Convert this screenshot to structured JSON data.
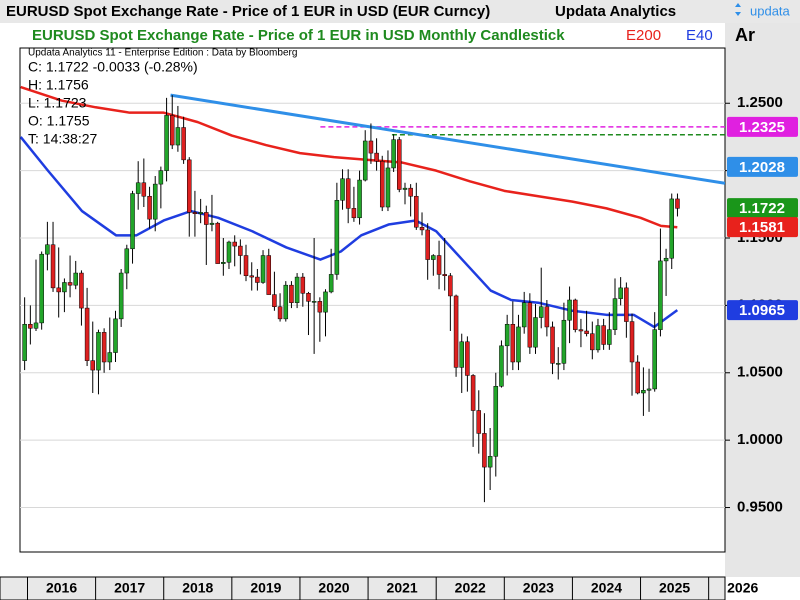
{
  "chart_data": {
    "type": "candlestick",
    "title": "EURUSD Spot Exchange Rate - Price of 1 EUR in USD (EUR Curncy)",
    "publisher": "Updata Analytics",
    "logo": "updata",
    "axis_tab": "Ar",
    "subtitle": "EURUSD Spot Exchange Rate - Price of 1 EUR in USD Monthly Candlestick",
    "info": [
      "Updata Analytics 11 - Enterprise Edition : Data by Bloomberg",
      "C: 1.1722  -0.0033 (-0.28%)",
      "H: 1.1756",
      "L: 1.1723",
      "O: 1.1755",
      "T: 14:38:27"
    ],
    "up_color": "#22a52a",
    "down_color": "#dd2020",
    "xlim": [
      2015.89,
      2026.24
    ],
    "xticks": [
      2016,
      2017,
      2018,
      2019,
      2020,
      2021,
      2022,
      2023,
      2024,
      2025,
      2026
    ],
    "ylim": [
      0.917,
      1.291
    ],
    "yticks": [
      {
        "value": 0.95,
        "label": "0.9500"
      },
      {
        "value": 1.0,
        "label": "1.0000"
      },
      {
        "value": 1.05,
        "label": "1.0500"
      },
      {
        "value": 1.1,
        "label": "1.1000"
      },
      {
        "value": 1.15,
        "label": "1.1500"
      },
      {
        "value": 1.2,
        "label": "1.2000"
      },
      {
        "value": 1.25,
        "label": "1.2500"
      }
    ],
    "grid": true,
    "x": [
      2015.958,
      2016.042,
      2016.125,
      2016.208,
      2016.292,
      2016.375,
      2016.458,
      2016.542,
      2016.625,
      2016.708,
      2016.792,
      2016.875,
      2016.958,
      2017.042,
      2017.125,
      2017.208,
      2017.292,
      2017.375,
      2017.458,
      2017.542,
      2017.625,
      2017.708,
      2017.792,
      2017.875,
      2017.958,
      2018.042,
      2018.125,
      2018.208,
      2018.292,
      2018.375,
      2018.458,
      2018.542,
      2018.625,
      2018.708,
      2018.792,
      2018.875,
      2018.958,
      2019.042,
      2019.125,
      2019.208,
      2019.292,
      2019.375,
      2019.458,
      2019.542,
      2019.625,
      2019.708,
      2019.792,
      2019.875,
      2019.958,
      2020.042,
      2020.125,
      2020.208,
      2020.292,
      2020.375,
      2020.458,
      2020.542,
      2020.625,
      2020.708,
      2020.792,
      2020.875,
      2020.958,
      2021.042,
      2021.125,
      2021.208,
      2021.292,
      2021.375,
      2021.458,
      2021.542,
      2021.625,
      2021.708,
      2021.792,
      2021.875,
      2021.958,
      2022.042,
      2022.125,
      2022.208,
      2022.292,
      2022.375,
      2022.458,
      2022.542,
      2022.625,
      2022.708,
      2022.792,
      2022.875,
      2022.958,
      2023.042,
      2023.125,
      2023.208,
      2023.292,
      2023.375,
      2023.458,
      2023.542,
      2023.625,
      2023.708,
      2023.792,
      2023.875,
      2023.958,
      2024.042,
      2024.125,
      2024.208,
      2024.292,
      2024.375,
      2024.458,
      2024.542,
      2024.625,
      2024.708,
      2024.792,
      2024.875,
      2024.958,
      2025.042,
      2025.125,
      2025.208,
      2025.292,
      2025.375,
      2025.458,
      2025.542
    ],
    "open": [
      1.059,
      1.086,
      1.083,
      1.087,
      1.138,
      1.145,
      1.113,
      1.11,
      1.117,
      1.115,
      1.124,
      1.098,
      1.059,
      1.052,
      1.08,
      1.058,
      1.065,
      1.09,
      1.124,
      1.142,
      1.183,
      1.191,
      1.181,
      1.164,
      1.19,
      1.2,
      1.241,
      1.219,
      1.232,
      1.208,
      1.169,
      1.168,
      1.169,
      1.16,
      1.161,
      1.131,
      1.132,
      1.147,
      1.144,
      1.137,
      1.122,
      1.121,
      1.117,
      1.137,
      1.108,
      1.099,
      1.09,
      1.115,
      1.102,
      1.121,
      1.109,
      1.103,
      1.103,
      1.095,
      1.11,
      1.123,
      1.178,
      1.194,
      1.172,
      1.165,
      1.193,
      1.222,
      1.213,
      1.207,
      1.173,
      1.202,
      1.223,
      1.186,
      1.187,
      1.181,
      1.158,
      1.156,
      1.134,
      1.137,
      1.123,
      1.122,
      1.107,
      1.054,
      1.073,
      1.048,
      1.022,
      1.005,
      0.98,
      0.988,
      1.04,
      1.07,
      1.086,
      1.058,
      1.084,
      1.102,
      1.069,
      1.091,
      1.099,
      1.084,
      1.057,
      1.057,
      1.089,
      1.104,
      1.082,
      1.081,
      1.079,
      1.067,
      1.085,
      1.071,
      1.082,
      1.105,
      1.113,
      1.088,
      1.058,
      1.035,
      1.037,
      1.038,
      1.082,
      1.133,
      1.135,
      1.179
    ],
    "high": [
      1.106,
      1.1,
      1.134,
      1.14,
      1.162,
      1.162,
      1.143,
      1.12,
      1.137,
      1.133,
      1.126,
      1.113,
      1.088,
      1.082,
      1.083,
      1.091,
      1.096,
      1.127,
      1.145,
      1.185,
      1.207,
      1.209,
      1.188,
      1.196,
      1.203,
      1.254,
      1.256,
      1.248,
      1.24,
      1.21,
      1.185,
      1.179,
      1.174,
      1.182,
      1.162,
      1.15,
      1.148,
      1.152,
      1.149,
      1.145,
      1.132,
      1.127,
      1.141,
      1.142,
      1.125,
      1.109,
      1.118,
      1.118,
      1.124,
      1.124,
      1.11,
      1.15,
      1.106,
      1.112,
      1.142,
      1.191,
      1.201,
      1.201,
      1.188,
      1.2,
      1.23,
      1.235,
      1.224,
      1.211,
      1.215,
      1.227,
      1.225,
      1.191,
      1.19,
      1.191,
      1.169,
      1.161,
      1.138,
      1.148,
      1.15,
      1.124,
      1.108,
      1.079,
      1.077,
      1.049,
      1.037,
      1.02,
      1.009,
      1.05,
      1.074,
      1.093,
      1.103,
      1.093,
      1.11,
      1.109,
      1.101,
      1.128,
      1.104,
      1.088,
      1.069,
      1.102,
      1.114,
      1.105,
      1.09,
      1.096,
      1.088,
      1.09,
      1.09,
      1.095,
      1.12,
      1.121,
      1.117,
      1.094,
      1.063,
      1.054,
      1.053,
      1.095,
      1.157,
      1.142,
      1.183,
      1.183
    ],
    "low": [
      1.052,
      1.071,
      1.081,
      1.082,
      1.126,
      1.11,
      1.091,
      1.095,
      1.106,
      1.112,
      1.085,
      1.055,
      1.035,
      1.034,
      1.05,
      1.052,
      1.058,
      1.084,
      1.112,
      1.131,
      1.171,
      1.173,
      1.157,
      1.155,
      1.172,
      1.192,
      1.216,
      1.214,
      1.205,
      1.151,
      1.151,
      1.161,
      1.13,
      1.155,
      1.131,
      1.122,
      1.127,
      1.129,
      1.123,
      1.118,
      1.111,
      1.111,
      1.116,
      1.108,
      1.096,
      1.088,
      1.088,
      1.098,
      1.098,
      1.099,
      1.078,
      1.064,
      1.073,
      1.077,
      1.109,
      1.119,
      1.171,
      1.161,
      1.162,
      1.16,
      1.192,
      1.205,
      1.2,
      1.17,
      1.17,
      1.199,
      1.184,
      1.175,
      1.166,
      1.156,
      1.152,
      1.119,
      1.122,
      1.112,
      1.111,
      1.081,
      1.047,
      1.035,
      1.036,
      0.995,
      0.99,
      0.954,
      0.963,
      0.973,
      1.039,
      1.048,
      1.052,
      1.052,
      1.079,
      1.064,
      1.064,
      1.083,
      1.077,
      1.049,
      1.045,
      1.052,
      1.072,
      1.08,
      1.069,
      1.077,
      1.06,
      1.065,
      1.067,
      1.067,
      1.078,
      1.1,
      1.076,
      1.033,
      1.034,
      1.018,
      1.021,
      1.036,
      1.077,
      1.107,
      1.127,
      1.166
    ],
    "close": [
      1.086,
      1.083,
      1.087,
      1.138,
      1.145,
      1.113,
      1.11,
      1.117,
      1.115,
      1.124,
      1.098,
      1.059,
      1.052,
      1.08,
      1.058,
      1.065,
      1.09,
      1.124,
      1.142,
      1.183,
      1.191,
      1.181,
      1.164,
      1.19,
      1.2,
      1.241,
      1.219,
      1.232,
      1.208,
      1.169,
      1.168,
      1.169,
      1.16,
      1.161,
      1.131,
      1.132,
      1.147,
      1.144,
      1.137,
      1.122,
      1.121,
      1.117,
      1.137,
      1.108,
      1.099,
      1.09,
      1.115,
      1.102,
      1.121,
      1.109,
      1.103,
      1.103,
      1.095,
      1.11,
      1.123,
      1.178,
      1.194,
      1.172,
      1.165,
      1.193,
      1.222,
      1.213,
      1.207,
      1.173,
      1.202,
      1.223,
      1.186,
      1.187,
      1.181,
      1.158,
      1.156,
      1.134,
      1.137,
      1.123,
      1.122,
      1.107,
      1.054,
      1.073,
      1.048,
      1.022,
      1.005,
      0.98,
      0.988,
      1.04,
      1.07,
      1.086,
      1.058,
      1.084,
      1.102,
      1.069,
      1.091,
      1.099,
      1.084,
      1.057,
      1.057,
      1.089,
      1.104,
      1.082,
      1.081,
      1.079,
      1.067,
      1.085,
      1.071,
      1.082,
      1.105,
      1.113,
      1.088,
      1.058,
      1.035,
      1.037,
      1.038,
      1.082,
      1.133,
      1.135,
      1.179,
      1.172
    ],
    "series": [
      {
        "name": "E200",
        "color": "#e8221c",
        "x": [
          2015.9,
          2016.5,
          2017.0,
          2017.5,
          2018.0,
          2018.5,
          2019.0,
          2019.5,
          2020.0,
          2020.5,
          2021.0,
          2021.5,
          2022.0,
          2022.5,
          2023.0,
          2023.5,
          2024.0,
          2024.5,
          2025.0,
          2025.3,
          2025.54
        ],
        "values": [
          1.262,
          1.252,
          1.247,
          1.243,
          1.243,
          1.236,
          1.226,
          1.219,
          1.213,
          1.21,
          1.208,
          1.206,
          1.2,
          1.192,
          1.185,
          1.181,
          1.177,
          1.172,
          1.165,
          1.159,
          1.158
        ]
      },
      {
        "name": "E40",
        "color": "#1f3de0",
        "x": [
          2015.9,
          2016.3,
          2016.8,
          2017.3,
          2017.6,
          2018.0,
          2018.4,
          2018.8,
          2019.3,
          2019.8,
          2020.3,
          2020.6,
          2020.9,
          2021.3,
          2021.7,
          2022.0,
          2022.4,
          2022.8,
          2023.1,
          2023.5,
          2024.0,
          2024.5,
          2024.9,
          2025.2,
          2025.54
        ],
        "values": [
          1.225,
          1.2,
          1.17,
          1.152,
          1.152,
          1.163,
          1.17,
          1.165,
          1.155,
          1.143,
          1.134,
          1.14,
          1.152,
          1.16,
          1.163,
          1.155,
          1.133,
          1.111,
          1.104,
          1.102,
          1.096,
          1.093,
          1.093,
          1.084,
          1.0965
        ]
      }
    ],
    "trendline": {
      "color": "#2f8fe8",
      "x": [
        2018.1,
        2026.24
      ],
      "values": [
        1.256,
        1.1906
      ]
    },
    "levels": [
      {
        "color": "#e020e0",
        "x": 2020.3,
        "value": 1.2325
      },
      {
        "color": "#1f8a1f",
        "x": 2021.35,
        "value": 1.2266
      }
    ],
    "price_labels": [
      {
        "value": 1.2325,
        "color": "#e020e0"
      },
      {
        "value": 1.2028,
        "color": "#2f8fe8"
      },
      {
        "value": 1.1722,
        "color": "#1a961a"
      },
      {
        "value": 1.1581,
        "color": "#e8221c"
      },
      {
        "value": 1.0965,
        "color": "#1f3de0"
      }
    ]
  }
}
